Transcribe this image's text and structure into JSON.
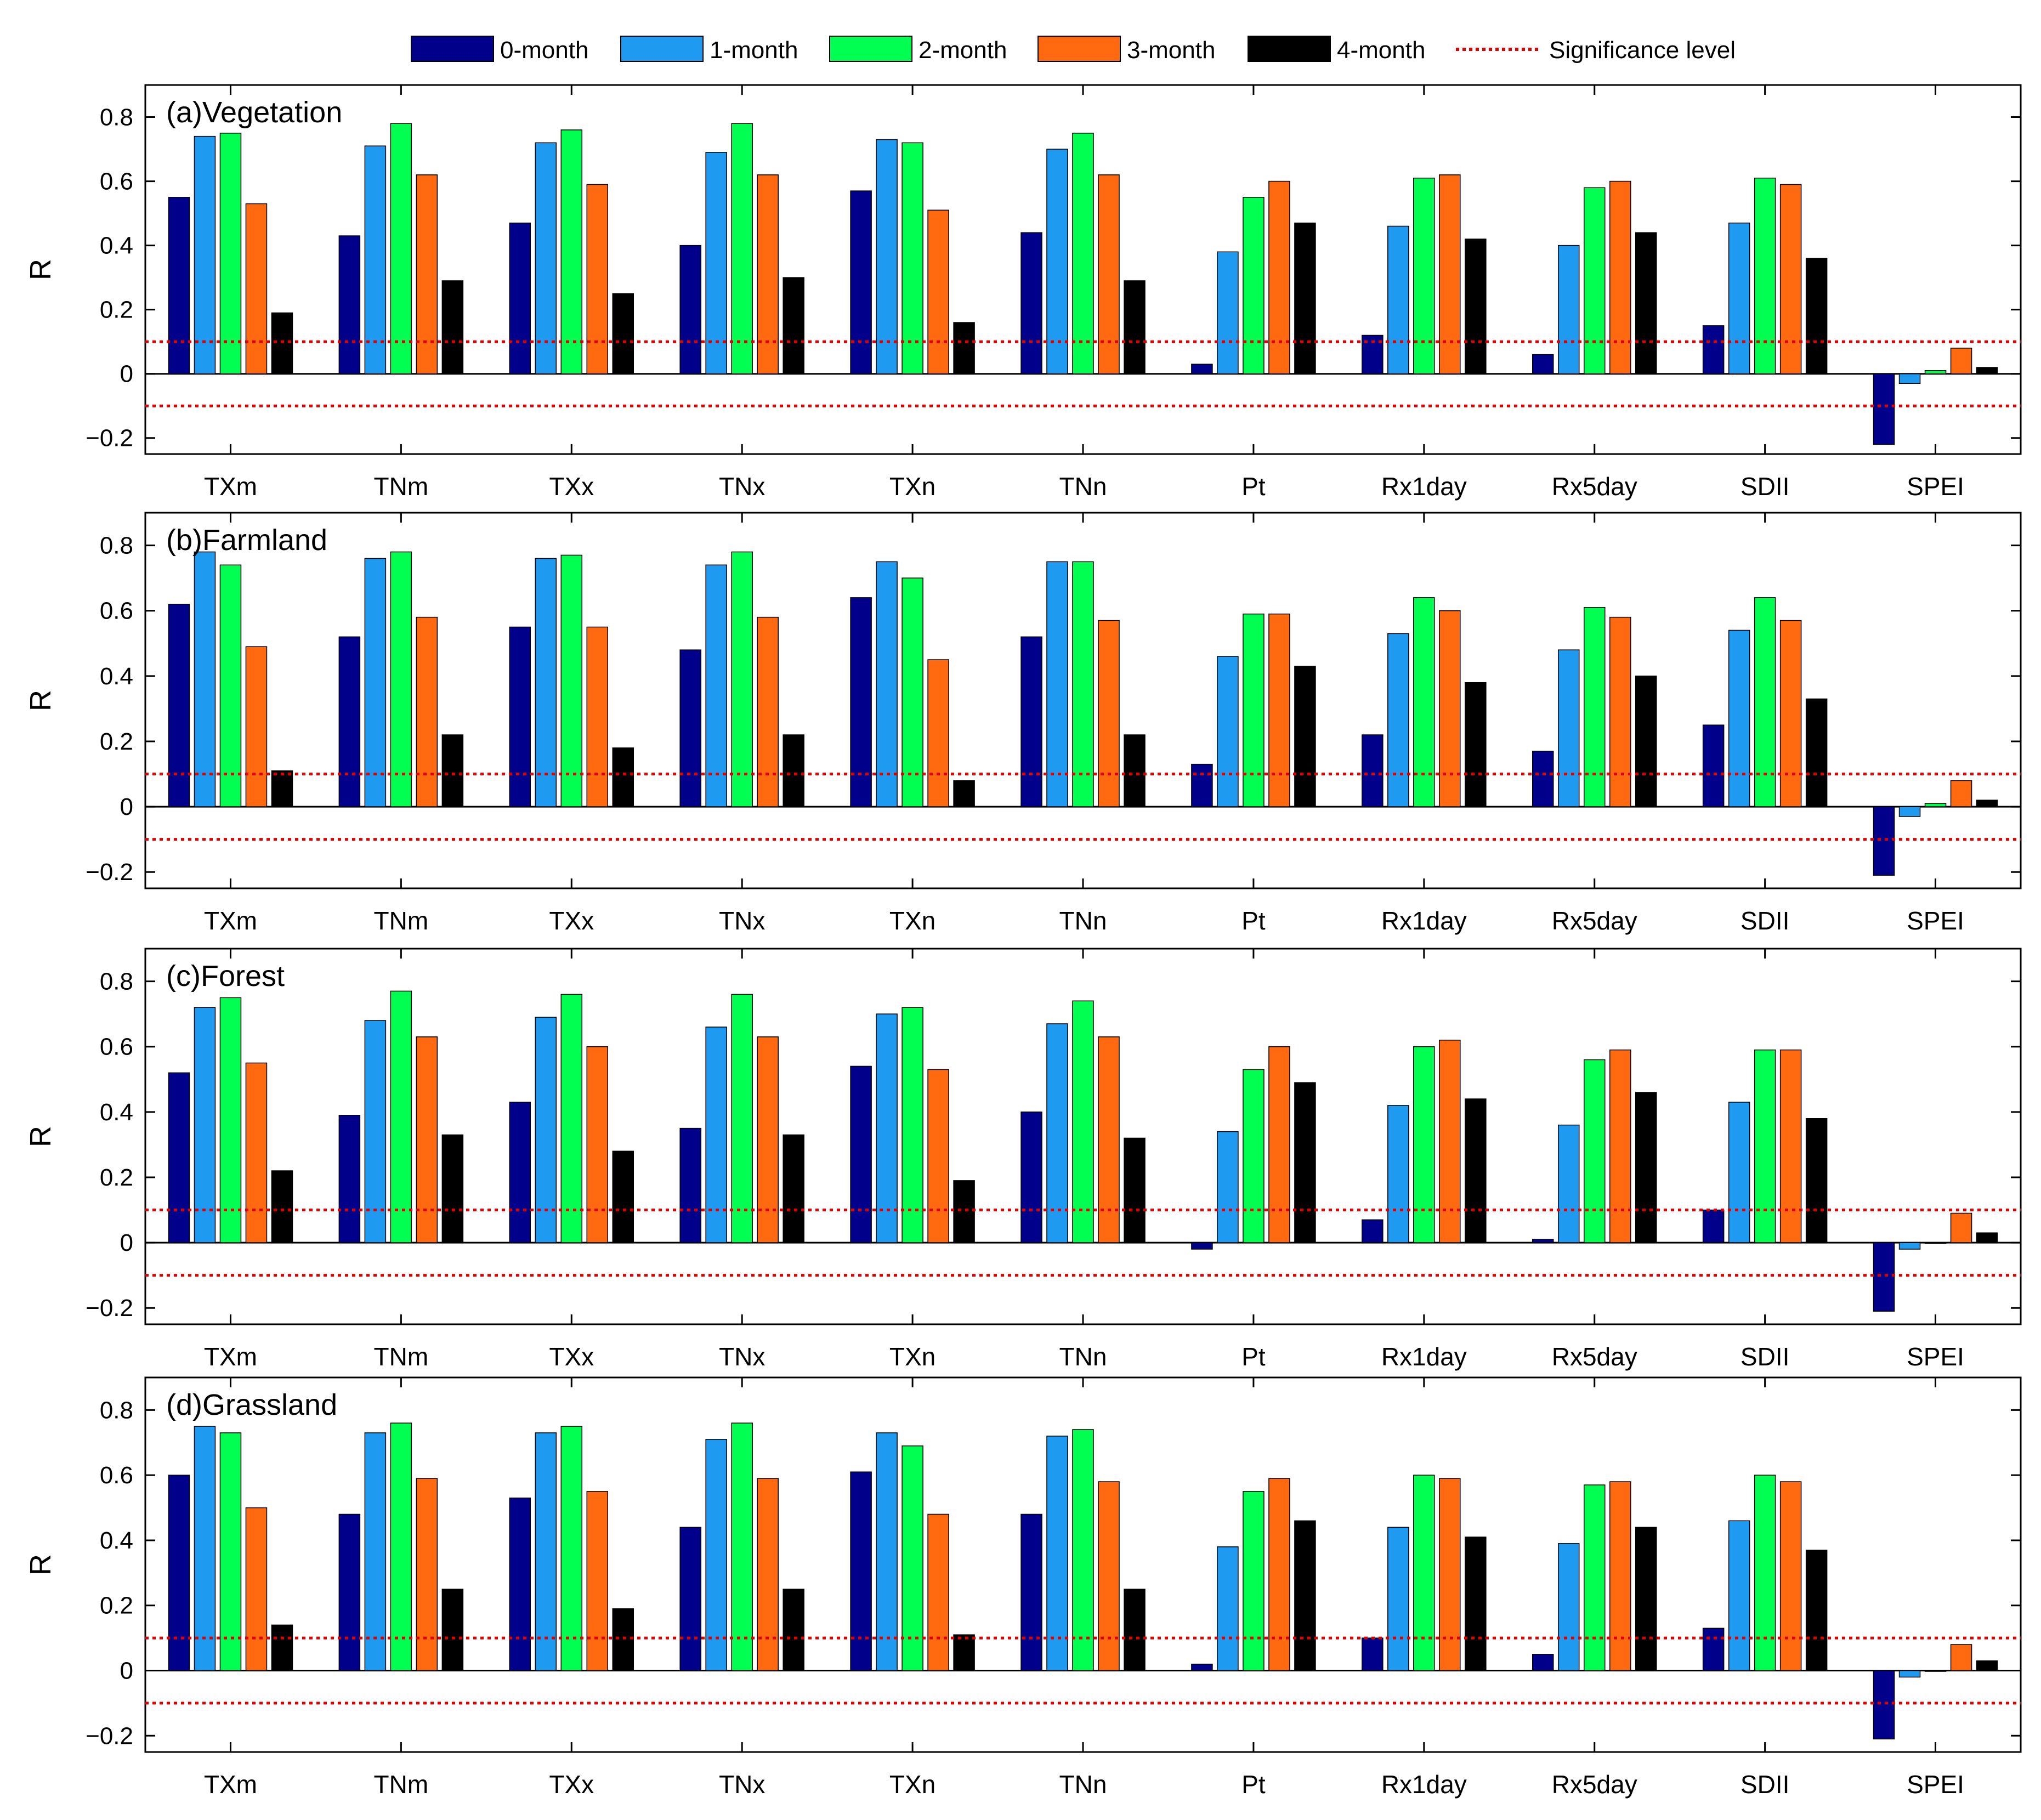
{
  "chart_data": {
    "type": "bar",
    "categories": [
      "TXm",
      "TNm",
      "TXx",
      "TNx",
      "TXn",
      "TNn",
      "Pt",
      "Rx1day",
      "Rx5day",
      "SDII",
      "SPEI"
    ],
    "legend": [
      {
        "name": "0-month",
        "color": "#00008B"
      },
      {
        "name": "1-month",
        "color": "#1E9BF0"
      },
      {
        "name": "2-month",
        "color": "#00FF50"
      },
      {
        "name": "3-month",
        "color": "#FF6A10"
      },
      {
        "name": "4-month",
        "color": "#000000"
      },
      {
        "name": "Significance level",
        "color": "#E00000",
        "style": "dotted"
      }
    ],
    "significance_level": 0.1,
    "ylabel": "R",
    "ylim": [
      -0.25,
      0.9
    ],
    "yticks": [
      -0.2,
      0,
      0.2,
      0.4,
      0.6,
      0.8
    ],
    "ytick_labels": [
      "−0.2",
      "0",
      "0.2",
      "0.4",
      "0.6",
      "0.8"
    ],
    "panels": [
      {
        "title": "(a)Vegetation",
        "series": [
          {
            "name": "0-month",
            "values": [
              0.55,
              0.43,
              0.47,
              0.4,
              0.57,
              0.44,
              0.03,
              0.12,
              0.06,
              0.15,
              -0.22
            ]
          },
          {
            "name": "1-month",
            "values": [
              0.74,
              0.71,
              0.72,
              0.69,
              0.73,
              0.7,
              0.38,
              0.46,
              0.4,
              0.47,
              -0.03
            ]
          },
          {
            "name": "2-month",
            "values": [
              0.75,
              0.78,
              0.76,
              0.78,
              0.72,
              0.75,
              0.55,
              0.61,
              0.58,
              0.61,
              0.01
            ]
          },
          {
            "name": "3-month",
            "values": [
              0.53,
              0.62,
              0.59,
              0.62,
              0.51,
              0.62,
              0.6,
              0.62,
              0.6,
              0.59,
              0.08
            ]
          },
          {
            "name": "4-month",
            "values": [
              0.19,
              0.29,
              0.25,
              0.3,
              0.16,
              0.29,
              0.47,
              0.42,
              0.44,
              0.36,
              0.02
            ]
          }
        ]
      },
      {
        "title": "(b)Farmland",
        "series": [
          {
            "name": "0-month",
            "values": [
              0.62,
              0.52,
              0.55,
              0.48,
              0.64,
              0.52,
              0.13,
              0.22,
              0.17,
              0.25,
              -0.21
            ]
          },
          {
            "name": "1-month",
            "values": [
              0.78,
              0.76,
              0.76,
              0.74,
              0.75,
              0.75,
              0.46,
              0.53,
              0.48,
              0.54,
              -0.03
            ]
          },
          {
            "name": "2-month",
            "values": [
              0.74,
              0.78,
              0.77,
              0.78,
              0.7,
              0.75,
              0.59,
              0.64,
              0.61,
              0.64,
              0.01
            ]
          },
          {
            "name": "3-month",
            "values": [
              0.49,
              0.58,
              0.55,
              0.58,
              0.45,
              0.57,
              0.59,
              0.6,
              0.58,
              0.57,
              0.08
            ]
          },
          {
            "name": "4-month",
            "values": [
              0.11,
              0.22,
              0.18,
              0.22,
              0.08,
              0.22,
              0.43,
              0.38,
              0.4,
              0.33,
              0.02
            ]
          }
        ]
      },
      {
        "title": "(c)Forest",
        "series": [
          {
            "name": "0-month",
            "values": [
              0.52,
              0.39,
              0.43,
              0.35,
              0.54,
              0.4,
              -0.02,
              0.07,
              0.01,
              0.1,
              -0.21
            ]
          },
          {
            "name": "1-month",
            "values": [
              0.72,
              0.68,
              0.69,
              0.66,
              0.7,
              0.67,
              0.34,
              0.42,
              0.36,
              0.43,
              -0.02
            ]
          },
          {
            "name": "2-month",
            "values": [
              0.75,
              0.77,
              0.76,
              0.76,
              0.72,
              0.74,
              0.53,
              0.6,
              0.56,
              0.59,
              0.0
            ]
          },
          {
            "name": "3-month",
            "values": [
              0.55,
              0.63,
              0.6,
              0.63,
              0.53,
              0.63,
              0.6,
              0.62,
              0.59,
              0.59,
              0.09
            ]
          },
          {
            "name": "4-month",
            "values": [
              0.22,
              0.33,
              0.28,
              0.33,
              0.19,
              0.32,
              0.49,
              0.44,
              0.46,
              0.38,
              0.03
            ]
          }
        ]
      },
      {
        "title": "(d)Grassland",
        "series": [
          {
            "name": "0-month",
            "values": [
              0.6,
              0.48,
              0.53,
              0.44,
              0.61,
              0.48,
              0.02,
              0.1,
              0.05,
              0.13,
              -0.21
            ]
          },
          {
            "name": "1-month",
            "values": [
              0.75,
              0.73,
              0.73,
              0.71,
              0.73,
              0.72,
              0.38,
              0.44,
              0.39,
              0.46,
              -0.02
            ]
          },
          {
            "name": "2-month",
            "values": [
              0.73,
              0.76,
              0.75,
              0.76,
              0.69,
              0.74,
              0.55,
              0.6,
              0.57,
              0.6,
              0.0
            ]
          },
          {
            "name": "3-month",
            "values": [
              0.5,
              0.59,
              0.55,
              0.59,
              0.48,
              0.58,
              0.59,
              0.59,
              0.58,
              0.58,
              0.08
            ]
          },
          {
            "name": "4-month",
            "values": [
              0.14,
              0.25,
              0.19,
              0.25,
              0.11,
              0.25,
              0.46,
              0.41,
              0.44,
              0.37,
              0.03
            ]
          }
        ]
      }
    ]
  }
}
